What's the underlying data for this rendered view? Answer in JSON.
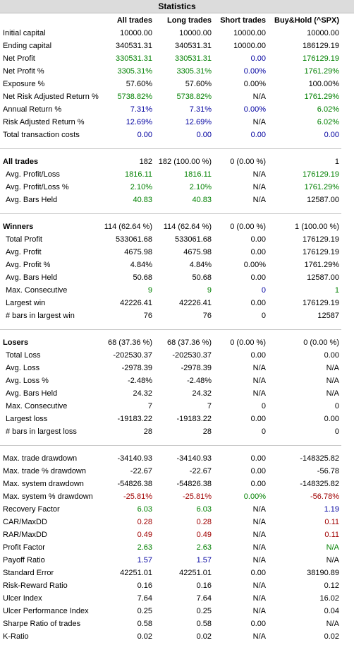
{
  "title": "Statistics",
  "header": [
    "All trades",
    "Long trades",
    "Short trades",
    "Buy&Hold (^SPX)"
  ],
  "sections": [
    {
      "rows": [
        {
          "label": "Initial capital",
          "cells": [
            "10000.00",
            "10000.00",
            "10000.00",
            "10000.00"
          ]
        },
        {
          "label": "Ending capital",
          "cells": [
            "340531.31",
            "340531.31",
            "10000.00",
            "186129.19"
          ]
        },
        {
          "label": "Net Profit",
          "cells": [
            "330531.31",
            "330531.31",
            "0.00",
            "176129.19"
          ],
          "colors": [
            "#008000",
            "#008000",
            "#0000a0",
            "#008000"
          ]
        },
        {
          "label": "Net Profit %",
          "cells": [
            "3305.31%",
            "3305.31%",
            "0.00%",
            "1761.29%"
          ],
          "colors": [
            "#008000",
            "#008000",
            "#0000a0",
            "#008000"
          ]
        },
        {
          "label": "Exposure %",
          "cells": [
            "57.60%",
            "57.60%",
            "0.00%",
            "100.00%"
          ]
        },
        {
          "label": "Net Risk Adjusted Return %",
          "cells": [
            "5738.82%",
            "5738.82%",
            "N/A",
            "1761.29%"
          ],
          "colors": [
            "#008000",
            "#008000",
            "#000000",
            "#008000"
          ]
        },
        {
          "label": "Annual Return %",
          "cells": [
            "7.31%",
            "7.31%",
            "0.00%",
            "6.02%"
          ],
          "colors": [
            "#0000a0",
            "#0000a0",
            "#0000a0",
            "#008000"
          ]
        },
        {
          "label": "Risk Adjusted Return %",
          "cells": [
            "12.69%",
            "12.69%",
            "N/A",
            "6.02%"
          ],
          "colors": [
            "#0000a0",
            "#0000a0",
            "#000000",
            "#008000"
          ]
        },
        {
          "label": "Total transaction costs",
          "cells": [
            "0.00",
            "0.00",
            "0.00",
            "0.00"
          ],
          "colors": [
            "#0000a0",
            "#0000a0",
            "#0000a0",
            "#0000a0"
          ]
        }
      ]
    },
    {
      "heading": {
        "label": "All trades",
        "cells": [
          "182",
          "182 (100.00 %)",
          "0 (0.00 %)",
          "1"
        ]
      },
      "rows": [
        {
          "label": "Avg. Profit/Loss",
          "cells": [
            "1816.11",
            "1816.11",
            "N/A",
            "176129.19"
          ],
          "colors": [
            "#008000",
            "#008000",
            "#000000",
            "#008000"
          ]
        },
        {
          "label": "Avg. Profit/Loss %",
          "cells": [
            "2.10%",
            "2.10%",
            "N/A",
            "1761.29%"
          ],
          "colors": [
            "#008000",
            "#008000",
            "#000000",
            "#008000"
          ]
        },
        {
          "label": "Avg. Bars Held",
          "cells": [
            "40.83",
            "40.83",
            "N/A",
            "12587.00"
          ],
          "colors": [
            "#008000",
            "#008000",
            "#000000",
            "#000000"
          ]
        }
      ]
    },
    {
      "heading": {
        "label": "Winners",
        "cells": [
          "114 (62.64 %)",
          "114 (62.64 %)",
          "0 (0.00 %)",
          "1 (100.00 %)"
        ]
      },
      "rows": [
        {
          "label": "Total Profit",
          "cells": [
            "533061.68",
            "533061.68",
            "0.00",
            "176129.19"
          ]
        },
        {
          "label": "Avg. Profit",
          "cells": [
            "4675.98",
            "4675.98",
            "0.00",
            "176129.19"
          ]
        },
        {
          "label": "Avg. Profit %",
          "cells": [
            "4.84%",
            "4.84%",
            "0.00%",
            "1761.29%"
          ]
        },
        {
          "label": "Avg. Bars Held",
          "cells": [
            "50.68",
            "50.68",
            "0.00",
            "12587.00"
          ]
        },
        {
          "label": "Max. Consecutive",
          "cells": [
            "9",
            "9",
            "0",
            "1"
          ],
          "colors": [
            "#008000",
            "#008000",
            "#0000a0",
            "#008000"
          ]
        },
        {
          "label": "Largest win",
          "cells": [
            "42226.41",
            "42226.41",
            "0.00",
            "176129.19"
          ]
        },
        {
          "label": "# bars in largest win",
          "cells": [
            "76",
            "76",
            "0",
            "12587"
          ]
        }
      ]
    },
    {
      "heading": {
        "label": "Losers",
        "cells": [
          "68 (37.36 %)",
          "68 (37.36 %)",
          "0 (0.00 %)",
          "0 (0.00 %)"
        ]
      },
      "rows": [
        {
          "label": "Total Loss",
          "cells": [
            "-202530.37",
            "-202530.37",
            "0.00",
            "0.00"
          ]
        },
        {
          "label": "Avg. Loss",
          "cells": [
            "-2978.39",
            "-2978.39",
            "N/A",
            "N/A"
          ]
        },
        {
          "label": "Avg. Loss %",
          "cells": [
            "-2.48%",
            "-2.48%",
            "N/A",
            "N/A"
          ]
        },
        {
          "label": "Avg. Bars Held",
          "cells": [
            "24.32",
            "24.32",
            "N/A",
            "N/A"
          ]
        },
        {
          "label": "Max. Consecutive",
          "cells": [
            "7",
            "7",
            "0",
            "0"
          ]
        },
        {
          "label": "Largest loss",
          "cells": [
            "-19183.22",
            "-19183.22",
            "0.00",
            "0.00"
          ]
        },
        {
          "label": "# bars in largest loss",
          "cells": [
            "28",
            "28",
            "0",
            "0"
          ]
        }
      ]
    },
    {
      "rows": [
        {
          "label": "Max. trade drawdown",
          "cells": [
            "-34140.93",
            "-34140.93",
            "0.00",
            "-148325.82"
          ]
        },
        {
          "label": "Max. trade % drawdown",
          "cells": [
            "-22.67",
            "-22.67",
            "0.00",
            "-56.78"
          ]
        },
        {
          "label": "Max. system drawdown",
          "cells": [
            "-54826.38",
            "-54826.38",
            "0.00",
            "-148325.82"
          ]
        },
        {
          "label": "Max. system % drawdown",
          "cells": [
            "-25.81%",
            "-25.81%",
            "0.00%",
            "-56.78%"
          ],
          "colors": [
            "#a00000",
            "#a00000",
            "#008000",
            "#a00000"
          ]
        },
        {
          "label": "Recovery Factor",
          "cells": [
            "6.03",
            "6.03",
            "N/A",
            "1.19"
          ],
          "colors": [
            "#008000",
            "#008000",
            "#000000",
            "#0000a0"
          ]
        },
        {
          "label": "CAR/MaxDD",
          "cells": [
            "0.28",
            "0.28",
            "N/A",
            "0.11"
          ],
          "colors": [
            "#a00000",
            "#a00000",
            "#000000",
            "#a00000"
          ]
        },
        {
          "label": "RAR/MaxDD",
          "cells": [
            "0.49",
            "0.49",
            "N/A",
            "0.11"
          ],
          "colors": [
            "#a00000",
            "#a00000",
            "#000000",
            "#a00000"
          ]
        },
        {
          "label": "Profit Factor",
          "cells": [
            "2.63",
            "2.63",
            "N/A",
            "N/A"
          ],
          "colors": [
            "#008000",
            "#008000",
            "#000000",
            "#008000"
          ]
        },
        {
          "label": "Payoff Ratio",
          "cells": [
            "1.57",
            "1.57",
            "N/A",
            "N/A"
          ],
          "colors": [
            "#0000a0",
            "#0000a0",
            "#000000",
            "#000000"
          ]
        },
        {
          "label": "Standard Error",
          "cells": [
            "42251.01",
            "42251.01",
            "0.00",
            "38190.89"
          ]
        },
        {
          "label": "Risk-Reward Ratio",
          "cells": [
            "0.16",
            "0.16",
            "N/A",
            "0.12"
          ]
        },
        {
          "label": "Ulcer Index",
          "cells": [
            "7.64",
            "7.64",
            "N/A",
            "16.02"
          ]
        },
        {
          "label": "Ulcer Performance Index",
          "cells": [
            "0.25",
            "0.25",
            "N/A",
            "0.04"
          ]
        },
        {
          "label": "Sharpe Ratio of trades",
          "cells": [
            "0.58",
            "0.58",
            "0.00",
            "N/A"
          ]
        },
        {
          "label": "K-Ratio",
          "cells": [
            "0.02",
            "0.02",
            "N/A",
            "0.02"
          ]
        }
      ]
    }
  ]
}
